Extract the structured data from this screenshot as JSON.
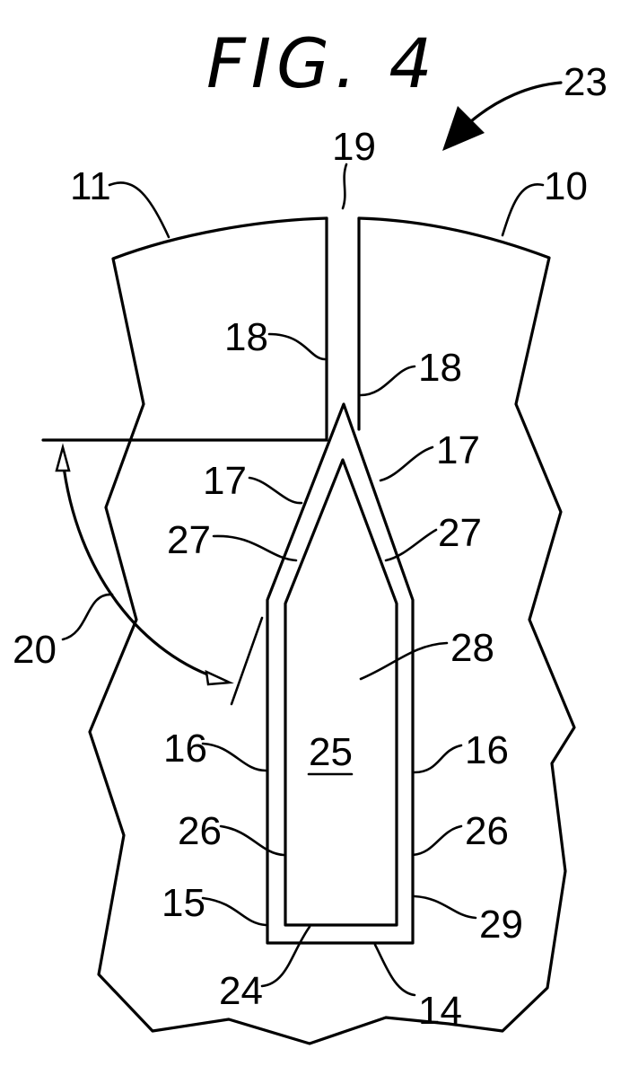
{
  "figure": {
    "title": "FIG. 4",
    "labels": {
      "l23": "23",
      "l19": "19",
      "l11": "11",
      "l10": "10",
      "l18_left": "18",
      "l18_right": "18",
      "l17_left": "17",
      "l17_right": "17",
      "l27_left": "27",
      "l27_right": "27",
      "l20": "20",
      "l28": "28",
      "l25": "25",
      "l16_left": "16",
      "l16_right": "16",
      "l26_left": "26",
      "l26_right": "26",
      "l15": "15",
      "l29": "29",
      "l24": "24",
      "l14": "14"
    }
  }
}
